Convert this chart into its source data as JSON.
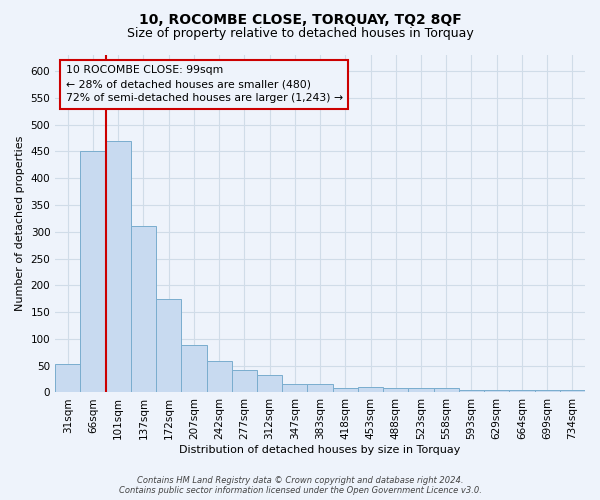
{
  "title1": "10, ROCOMBE CLOSE, TORQUAY, TQ2 8QF",
  "title2": "Size of property relative to detached houses in Torquay",
  "xlabel": "Distribution of detached houses by size in Torquay",
  "ylabel": "Number of detached properties",
  "categories": [
    "31sqm",
    "66sqm",
    "101sqm",
    "137sqm",
    "172sqm",
    "207sqm",
    "242sqm",
    "277sqm",
    "312sqm",
    "347sqm",
    "383sqm",
    "418sqm",
    "453sqm",
    "488sqm",
    "523sqm",
    "558sqm",
    "593sqm",
    "629sqm",
    "664sqm",
    "699sqm",
    "734sqm"
  ],
  "values": [
    53,
    451,
    470,
    310,
    175,
    88,
    58,
    42,
    32,
    15,
    15,
    8,
    10,
    8,
    8,
    8,
    5,
    5,
    4,
    4,
    5
  ],
  "bar_color": "#c8daf0",
  "bar_edge_color": "#7aadce",
  "vline_x": 1.5,
  "vline_color": "#cc0000",
  "annotation_text": "10 ROCOMBE CLOSE: 99sqm\n← 28% of detached houses are smaller (480)\n72% of semi-detached houses are larger (1,243) →",
  "annotation_box_edgecolor": "#cc0000",
  "annotation_box_facecolor": "#eef3fb",
  "ylim": [
    0,
    630
  ],
  "yticks": [
    0,
    50,
    100,
    150,
    200,
    250,
    300,
    350,
    400,
    450,
    500,
    550,
    600
  ],
  "footer1": "Contains HM Land Registry data © Crown copyright and database right 2024.",
  "footer2": "Contains public sector information licensed under the Open Government Licence v3.0.",
  "bg_color": "#eef3fb",
  "grid_color": "#d0dce8",
  "title1_fontsize": 10,
  "title2_fontsize": 9,
  "xlabel_fontsize": 8,
  "ylabel_fontsize": 8,
  "tick_fontsize": 7.5,
  "footer_fontsize": 6
}
